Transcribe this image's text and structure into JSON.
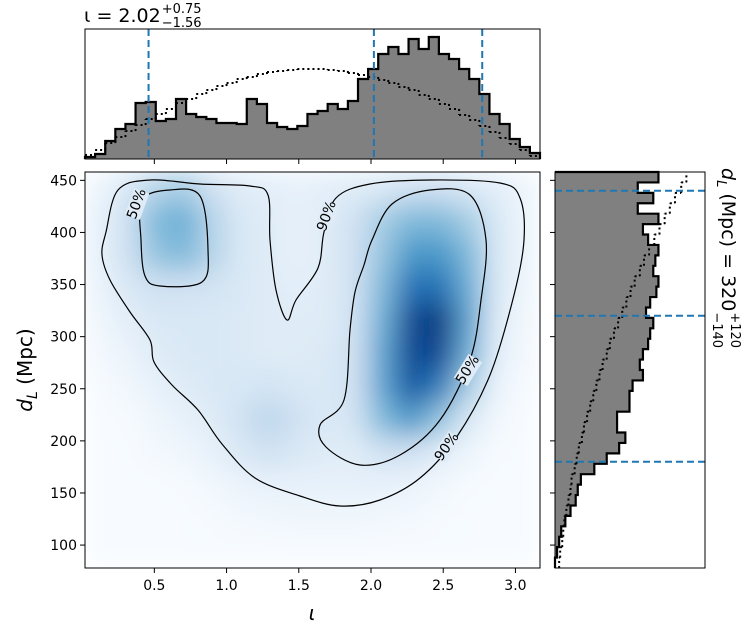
{
  "chart_data": {
    "type": "corner",
    "title": {
      "text": "ι = 2.02",
      "plus": "+0.75",
      "minus": "−1.56"
    },
    "right_title": {
      "symbol": "d",
      "subscript": "L",
      "text": " (Mpc) = 320",
      "plus": "+120",
      "minus": "−140"
    },
    "x_label": "ι",
    "y_label": {
      "symbol": "d",
      "subscript": "L",
      "text": " (Mpc)"
    },
    "xlim": [
      0.02,
      3.17
    ],
    "ylim": [
      78,
      458
    ],
    "xticks": [
      0.5,
      {
        "value": 1,
        "label": "1.0"
      },
      1.5,
      {
        "value": 2,
        "label": "2.0"
      },
      2.5,
      {
        "value": 3,
        "label": "3.0"
      }
    ],
    "yticks": [
      100,
      150,
      200,
      250,
      300,
      350,
      400,
      450
    ],
    "colormap": [
      "#f7fbff",
      "#deebf7",
      "#c6dbef",
      "#9ecae1",
      "#6baed6",
      "#4292c6",
      "#2171b5",
      "#08519c",
      "#08306b"
    ],
    "density": [
      [
        0.05,
        0.15,
        0.3,
        0.35,
        0.2,
        0.12,
        0.1,
        0.08,
        0.1,
        0.12,
        0.15,
        0.2,
        0.2,
        0.15,
        0.1,
        0.05
      ],
      [
        0.08,
        0.2,
        0.45,
        0.5,
        0.3,
        0.15,
        0.12,
        0.08,
        0.12,
        0.2,
        0.35,
        0.45,
        0.45,
        0.35,
        0.15,
        0.05
      ],
      [
        0.08,
        0.2,
        0.4,
        0.45,
        0.3,
        0.15,
        0.12,
        0.08,
        0.12,
        0.2,
        0.4,
        0.6,
        0.6,
        0.45,
        0.15,
        0.05
      ],
      [
        0.06,
        0.15,
        0.2,
        0.2,
        0.18,
        0.15,
        0.12,
        0.1,
        0.12,
        0.2,
        0.45,
        0.75,
        0.75,
        0.5,
        0.15,
        0.04
      ],
      [
        0.04,
        0.1,
        0.15,
        0.15,
        0.15,
        0.14,
        0.12,
        0.12,
        0.12,
        0.2,
        0.5,
        0.9,
        0.95,
        0.55,
        0.12,
        0.03
      ],
      [
        0.02,
        0.06,
        0.12,
        0.15,
        0.15,
        0.14,
        0.12,
        0.12,
        0.14,
        0.2,
        0.55,
        0.9,
        0.9,
        0.5,
        0.1,
        0.02
      ],
      [
        0.01,
        0.03,
        0.08,
        0.12,
        0.15,
        0.16,
        0.18,
        0.15,
        0.14,
        0.2,
        0.55,
        0.85,
        0.7,
        0.35,
        0.06,
        0.01
      ],
      [
        0,
        0.01,
        0.04,
        0.08,
        0.12,
        0.2,
        0.28,
        0.2,
        0.14,
        0.18,
        0.45,
        0.6,
        0.4,
        0.15,
        0.03,
        0
      ],
      [
        0,
        0,
        0.02,
        0.04,
        0.08,
        0.15,
        0.2,
        0.15,
        0.12,
        0.12,
        0.2,
        0.2,
        0.12,
        0.05,
        0.01,
        0
      ],
      [
        0,
        0,
        0,
        0.01,
        0.03,
        0.06,
        0.08,
        0.08,
        0.08,
        0.08,
        0.08,
        0.06,
        0.03,
        0.01,
        0,
        0
      ],
      [
        0,
        0,
        0,
        0,
        0.01,
        0.02,
        0.03,
        0.04,
        0.04,
        0.04,
        0.03,
        0.02,
        0.01,
        0,
        0,
        0
      ],
      [
        0,
        0,
        0,
        0,
        0,
        0,
        0,
        0,
        0,
        0,
        0,
        0,
        0,
        0,
        0,
        0
      ]
    ],
    "contour_labels": [
      "50%",
      "90%",
      "50%",
      "90%"
    ],
    "top_hist": {
      "bins": [
        0.02,
        0.09,
        0.16,
        0.23,
        0.3,
        0.37,
        0.44,
        0.51,
        0.58,
        0.65,
        0.72,
        0.79,
        0.86,
        0.93,
        1.0,
        1.07,
        1.14,
        1.21,
        1.28,
        1.35,
        1.42,
        1.49,
        1.56,
        1.63,
        1.7,
        1.77,
        1.84,
        1.91,
        1.98,
        2.05,
        2.12,
        2.19,
        2.26,
        2.33,
        2.4,
        2.47,
        2.54,
        2.61,
        2.68,
        2.75,
        2.82,
        2.89,
        2.96,
        3.03,
        3.1,
        3.17
      ],
      "ylim": [
        0,
        130
      ],
      "posterior": [
        2,
        5,
        18,
        30,
        35,
        56,
        57,
        38,
        40,
        60,
        45,
        42,
        40,
        36,
        36,
        35,
        60,
        55,
        36,
        32,
        30,
        33,
        45,
        48,
        55,
        50,
        58,
        80,
        90,
        105,
        112,
        105,
        120,
        110,
        122,
        105,
        100,
        90,
        80,
        65,
        45,
        35,
        20,
        12,
        6
      ],
      "prior": [
        4,
        9,
        16,
        22,
        28,
        34,
        40,
        45,
        50,
        56,
        60,
        65,
        69,
        73,
        76,
        80,
        82,
        85,
        87,
        88,
        89,
        90,
        90,
        90,
        89,
        88,
        86,
        84,
        82,
        79,
        76,
        72,
        69,
        64,
        60,
        55,
        50,
        44,
        39,
        33,
        27,
        21,
        15,
        9,
        3
      ],
      "quantiles": [
        0.46,
        2.02,
        2.77
      ],
      "color": "#808080",
      "line_color": "#1f77b4"
    },
    "right_hist": {
      "bins": [
        78,
        88,
        98,
        108,
        118,
        128,
        138,
        148,
        158,
        168,
        178,
        188,
        198,
        208,
        218,
        228,
        238,
        248,
        258,
        268,
        278,
        288,
        298,
        308,
        318,
        328,
        338,
        348,
        358,
        368,
        378,
        388,
        398,
        408,
        418,
        428,
        438,
        448,
        458
      ],
      "xlim": [
        0,
        145
      ],
      "posterior": [
        0,
        2,
        4,
        6,
        10,
        15,
        20,
        22,
        25,
        38,
        50,
        62,
        68,
        60,
        60,
        72,
        72,
        75,
        85,
        82,
        85,
        90,
        92,
        95,
        88,
        92,
        98,
        100,
        95,
        97,
        100,
        90,
        85,
        100,
        80,
        95,
        80,
        100
      ],
      "prior": [
        4,
        5,
        7,
        8,
        9,
        11,
        13,
        15,
        16,
        19,
        21,
        23,
        26,
        28,
        31,
        34,
        37,
        40,
        43,
        46,
        50,
        53,
        57,
        61,
        65,
        69,
        73,
        77,
        82,
        86,
        91,
        96,
        101,
        106,
        111,
        116,
        122,
        127
      ],
      "quantiles": [
        180,
        320,
        440
      ]
    }
  }
}
